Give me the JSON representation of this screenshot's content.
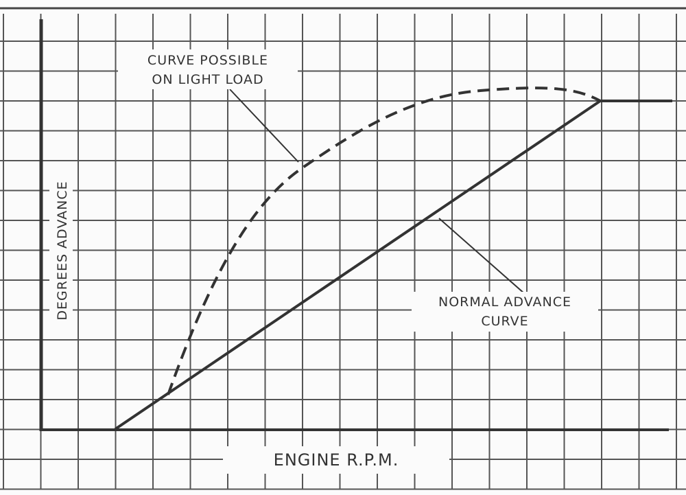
{
  "labels": {
    "light_load": [
      "CURVE POSSIBLE",
      "ON LIGHT LOAD"
    ],
    "normal": [
      "NORMAL ADVANCE",
      "CURVE"
    ],
    "y_axis": "DEGREES ADVANCE",
    "x_axis": "ENGINE R.P.M."
  }
}
